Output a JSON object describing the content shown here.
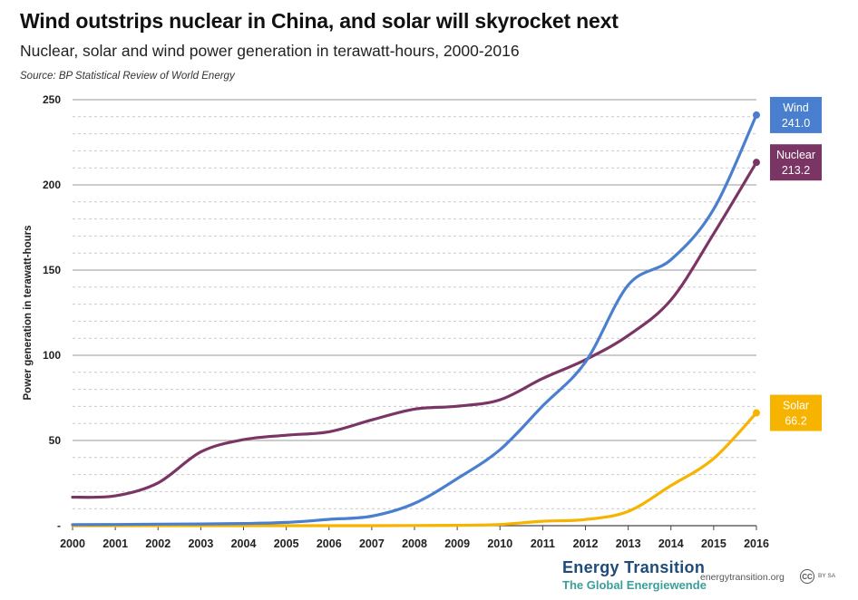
{
  "header": {
    "title": "Wind outstrips nuclear in China, and solar will skyrocket next",
    "subtitle": "Nuclear, solar and wind power generation in terawatt-hours, 2000-2016",
    "source": "Source: BP Statistical Review of World Energy"
  },
  "footer": {
    "brand": "Energy Transition",
    "brand_sub": "The Global Energiewende",
    "url": "energytransition.org",
    "cc_symbol": "CC",
    "license": "BY SA"
  },
  "chart_data": {
    "type": "line",
    "title": "Wind outstrips nuclear in China, and solar will skyrocket next",
    "subtitle": "Nuclear, solar and wind power generation in terawatt-hours, 2000-2016",
    "xlabel": "",
    "ylabel": "Power generation in terawatt-hours",
    "x": [
      "2000",
      "2001",
      "2002",
      "2003",
      "2004",
      "2005",
      "2006",
      "2007",
      "2008",
      "2009",
      "2010",
      "2011",
      "2012",
      "2013",
      "2014",
      "2015",
      "2016"
    ],
    "ylim": [
      0,
      250
    ],
    "yticks": [
      0,
      50,
      100,
      150,
      200,
      250
    ],
    "ytick_labels": [
      "-",
      "50",
      "100",
      "150",
      "200",
      "250"
    ],
    "grid": true,
    "legend": "end-labels",
    "series": [
      {
        "name": "Wind",
        "color": "#4a7fcf",
        "end_label": "241.0",
        "values": [
          0.6,
          0.7,
          0.9,
          1.0,
          1.3,
          1.9,
          3.7,
          5.6,
          13.1,
          27.6,
          44.6,
          70.3,
          96.0,
          141.2,
          156.1,
          185.8,
          241.0
        ]
      },
      {
        "name": "Nuclear",
        "color": "#7b3565",
        "end_label": "213.2",
        "values": [
          16.7,
          17.5,
          25.1,
          43.3,
          50.5,
          53.1,
          55.1,
          62.1,
          68.4,
          70.1,
          73.9,
          86.4,
          97.4,
          111.6,
          132.5,
          171.4,
          213.2
        ]
      },
      {
        "name": "Solar",
        "color": "#f6b300",
        "end_label": "66.2",
        "values": [
          0.0,
          0.0,
          0.0,
          0.0,
          0.0,
          0.0,
          0.0,
          0.0,
          0.1,
          0.2,
          0.7,
          2.6,
          3.6,
          8.4,
          23.5,
          39.4,
          66.2
        ]
      }
    ]
  }
}
